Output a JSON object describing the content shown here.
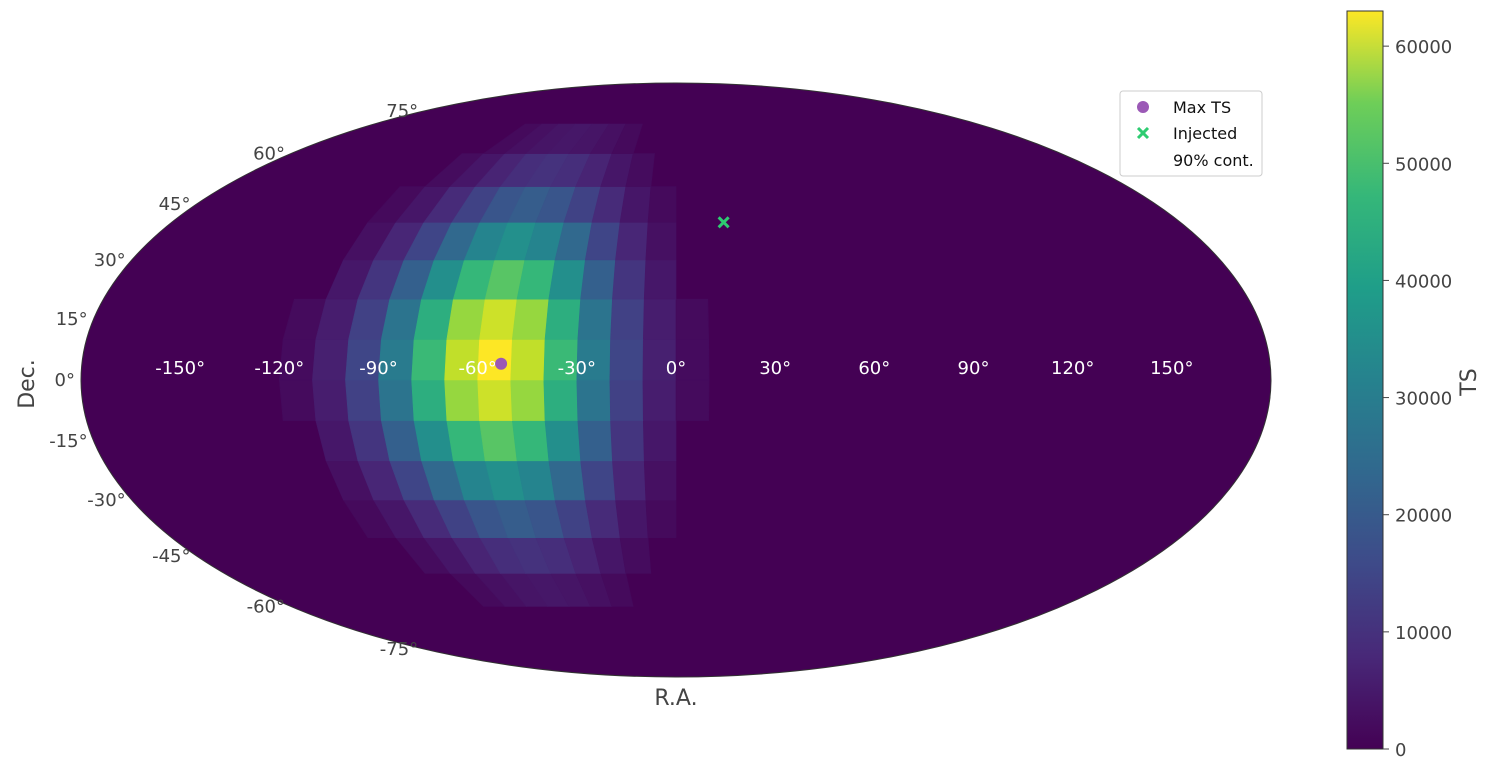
{
  "chart_data": {
    "type": "heatmap",
    "projection": "mollweide",
    "title": "",
    "xlabel": "R.A.",
    "ylabel": "Dec.",
    "ra_ticks": [
      "-150°",
      "-120°",
      "-90°",
      "-60°",
      "-30°",
      "0°",
      "30°",
      "60°",
      "90°",
      "120°",
      "150°"
    ],
    "dec_ticks": [
      "75°",
      "60°",
      "45°",
      "30°",
      "15°",
      "0°",
      "-15°",
      "-30°",
      "-45°",
      "-60°",
      "-75°"
    ],
    "grid": false,
    "colormap": "viridis",
    "colorbar": {
      "label": "TS",
      "range": [
        0,
        63000
      ],
      "ticks": [
        "0",
        "10000",
        "20000",
        "30000",
        "40000",
        "50000",
        "60000"
      ]
    },
    "ts_map": {
      "peak_ra": -55,
      "peak_dec": 5,
      "peak_value": 63000,
      "hot_region_ra": [
        -120,
        15
      ],
      "hot_region_dec": [
        -75,
        75
      ]
    },
    "points": [
      {
        "name": "Max TS",
        "ra": -53,
        "dec": 4,
        "marker": "circle",
        "color": "#9b59b6"
      },
      {
        "name": "Injected",
        "ra": 17,
        "dec": 40,
        "marker": "x",
        "color": "#2ecc71"
      }
    ],
    "legend": {
      "position": "top-right",
      "entries": [
        "Max TS",
        "Injected",
        "90% cont."
      ]
    }
  }
}
